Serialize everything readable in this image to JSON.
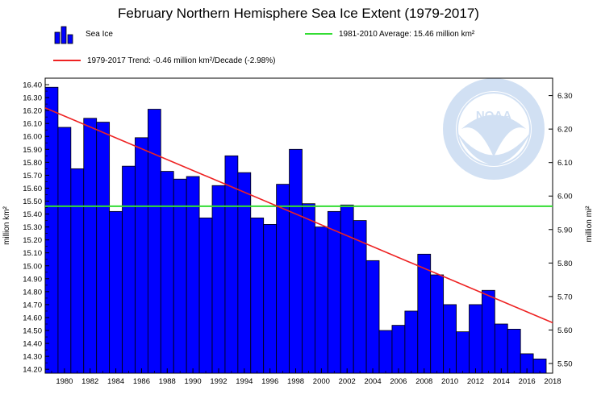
{
  "chart_data": {
    "type": "bar",
    "title": "February Northern Hemisphere Sea Ice Extent (1979-2017)",
    "ylabel": "million km²",
    "ylabel_right": "million mi²",
    "xlabel": "",
    "ylim": [
      14.17,
      16.45
    ],
    "ylim_right": [
      5.471,
      6.352
    ],
    "yticks": [
      "14.20",
      "14.30",
      "14.40",
      "14.50",
      "14.60",
      "14.70",
      "14.80",
      "14.90",
      "15.00",
      "15.10",
      "15.20",
      "15.30",
      "15.40",
      "15.50",
      "15.60",
      "15.70",
      "15.80",
      "15.90",
      "16.00",
      "16.10",
      "16.20",
      "16.30",
      "16.40"
    ],
    "yticks_right": [
      "5.50",
      "5.60",
      "5.70",
      "5.80",
      "5.90",
      "6.00",
      "6.10",
      "6.20",
      "6.30"
    ],
    "xticks": [
      "1980",
      "1982",
      "1984",
      "1986",
      "1988",
      "1990",
      "1992",
      "1994",
      "1996",
      "1998",
      "2000",
      "2002",
      "2004",
      "2006",
      "2008",
      "2010",
      "2012",
      "2014",
      "2016",
      "2018"
    ],
    "categories": [
      1979,
      1980,
      1981,
      1982,
      1983,
      1984,
      1985,
      1986,
      1987,
      1988,
      1989,
      1990,
      1991,
      1992,
      1993,
      1994,
      1995,
      1996,
      1997,
      1998,
      1999,
      2000,
      2001,
      2002,
      2003,
      2004,
      2005,
      2006,
      2007,
      2008,
      2009,
      2010,
      2011,
      2012,
      2013,
      2014,
      2015,
      2016,
      2017
    ],
    "series": [
      {
        "name": "Sea Ice",
        "color": "#0000ff",
        "values": [
          16.38,
          16.07,
          15.75,
          16.14,
          16.11,
          15.42,
          15.77,
          15.99,
          16.21,
          15.73,
          15.67,
          15.69,
          15.37,
          15.62,
          15.85,
          15.72,
          15.37,
          15.32,
          15.63,
          15.9,
          15.48,
          15.3,
          15.42,
          15.47,
          15.35,
          15.04,
          14.5,
          14.54,
          14.65,
          15.09,
          14.93,
          14.7,
          14.49,
          14.7,
          14.81,
          14.55,
          14.51,
          14.32,
          14.28
        ]
      }
    ],
    "average": {
      "label": "1981-2010 Average: 15.46 million km²",
      "value": 15.46,
      "color": "#33dd33"
    },
    "trend": {
      "label": "1979-2017 Trend: -0.46 million km²/Decade (-2.98%)",
      "start": [
        1979,
        16.22
      ],
      "end": [
        2017.5,
        14.56
      ],
      "color": "#ee2222"
    },
    "grid": false,
    "legend_position": "top"
  },
  "watermark": {
    "logo_text": "NOAA",
    "ring_text": "NATIONAL OCEANIC AND ATMOSPHERIC ADMINISTRATION",
    "ring_text_bottom": "U.S. DEPARTMENT OF COMMERCE"
  }
}
